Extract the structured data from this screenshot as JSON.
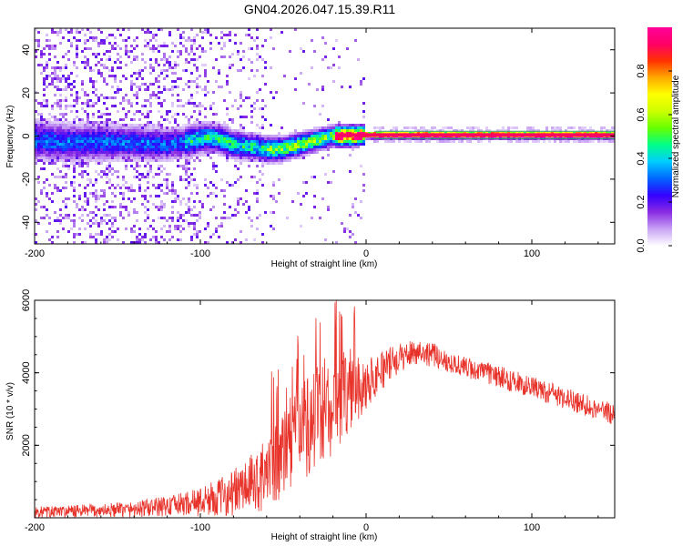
{
  "title": "GN04.2026.047.15.39.R11",
  "chart_data": [
    {
      "type": "heatmap",
      "name": "spectrogram",
      "xlabel": "Height of straight line (km)",
      "ylabel": "Frequency (Hz)",
      "xlim": [
        -200,
        150
      ],
      "ylim": [
        -50,
        50
      ],
      "xticks": [
        -200,
        -100,
        0,
        100
      ],
      "yticks": [
        -40,
        -20,
        0,
        20,
        40
      ],
      "ridge": [
        [
          -200,
          -2
        ],
        [
          -180,
          -3
        ],
        [
          -160,
          -3
        ],
        [
          -140,
          -3
        ],
        [
          -120,
          -4
        ],
        [
          -110,
          -3
        ],
        [
          -100,
          -1
        ],
        [
          -90,
          -1
        ],
        [
          -80,
          -4
        ],
        [
          -70,
          -5
        ],
        [
          -60,
          -6
        ],
        [
          -50,
          -6
        ],
        [
          -40,
          -4
        ],
        [
          -30,
          -2
        ],
        [
          -20,
          0
        ],
        [
          -10,
          0
        ],
        [
          0,
          0.5
        ],
        [
          50,
          0.5
        ],
        [
          150,
          0.5
        ]
      ],
      "colorbar": {
        "label": "Normalized spectral amplitude",
        "range": [
          0,
          1
        ],
        "ticks": [
          "0.0",
          "0.2",
          "0.4",
          "0.6",
          "0.8"
        ],
        "colors": [
          "#ffffff",
          "#c8a2f5",
          "#8a2be2",
          "#3300ff",
          "#0066ff",
          "#00ccff",
          "#00ff88",
          "#66ff00",
          "#ccff00",
          "#ffff00",
          "#ffaa00",
          "#ff3300",
          "#ff0066",
          "#ff0099"
        ]
      }
    },
    {
      "type": "line",
      "name": "snr",
      "xlabel": "Height of straight line (km)",
      "ylabel": "SNR (10 * v/v)",
      "xlim": [
        -200,
        150
      ],
      "ylim": [
        0,
        6000
      ],
      "xticks": [
        -200,
        -100,
        0,
        100
      ],
      "yticks": [
        2000,
        4000,
        6000
      ],
      "color": "#e8332b",
      "envelope": [
        [
          -200,
          150
        ],
        [
          -180,
          170
        ],
        [
          -160,
          200
        ],
        [
          -140,
          230
        ],
        [
          -120,
          320
        ],
        [
          -100,
          450
        ],
        [
          -90,
          550
        ],
        [
          -80,
          700
        ],
        [
          -70,
          900
        ],
        [
          -60,
          1200
        ],
        [
          -50,
          1700
        ],
        [
          -40,
          2300
        ],
        [
          -30,
          2800
        ],
        [
          -20,
          3000
        ],
        [
          -10,
          3400
        ],
        [
          0,
          3700
        ],
        [
          10,
          4100
        ],
        [
          20,
          4400
        ],
        [
          30,
          4600
        ],
        [
          40,
          4500
        ],
        [
          50,
          4300
        ],
        [
          60,
          4150
        ],
        [
          80,
          3900
        ],
        [
          100,
          3600
        ],
        [
          120,
          3300
        ],
        [
          140,
          3000
        ],
        [
          150,
          2850
        ]
      ],
      "noise": [
        [
          -200,
          160
        ],
        [
          -150,
          200
        ],
        [
          -110,
          320
        ],
        [
          -90,
          500
        ],
        [
          -70,
          800
        ],
        [
          -50,
          1200
        ],
        [
          -30,
          1500
        ],
        [
          -15,
          1200
        ],
        [
          0,
          700
        ],
        [
          20,
          400
        ],
        [
          50,
          300
        ],
        [
          100,
          300
        ],
        [
          150,
          300
        ]
      ],
      "spikes": [
        [
          -18,
          6000
        ],
        [
          -25,
          4400
        ],
        [
          -10,
          4300
        ]
      ]
    }
  ]
}
